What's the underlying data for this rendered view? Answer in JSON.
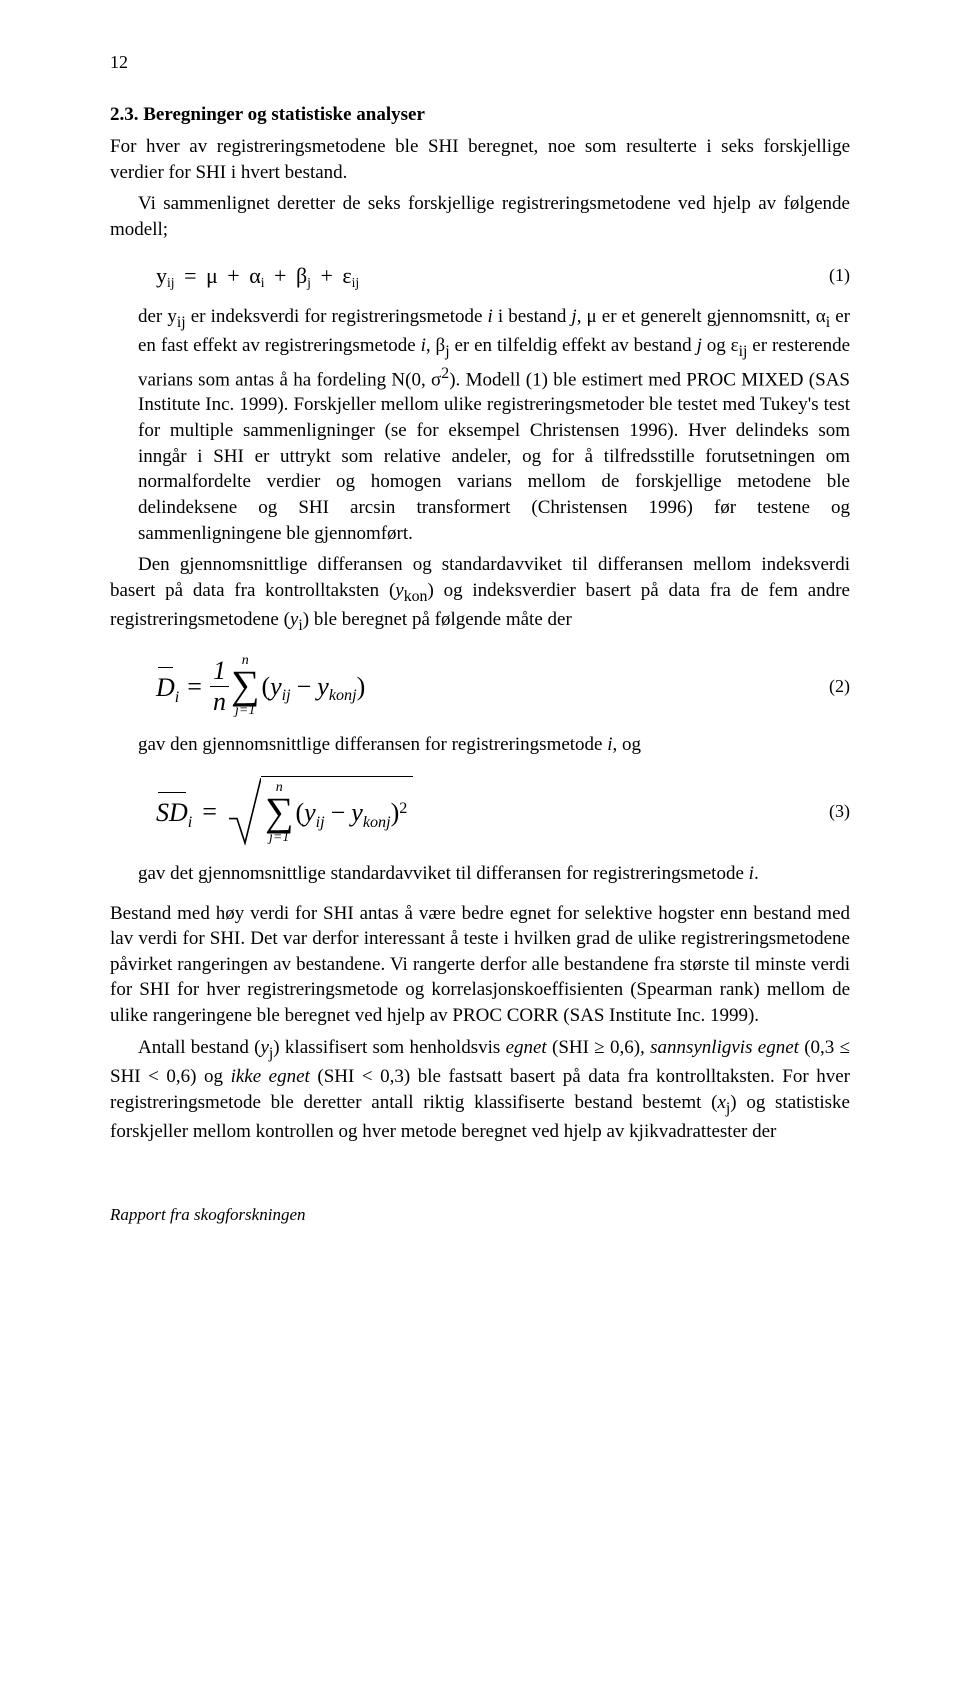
{
  "page": {
    "number": "12"
  },
  "heading": "2.3. Beregninger og statistiske analyser",
  "para1": "For hver av registreringsmetodene ble SHI beregnet, noe som resulterte i seks forskjellige verdier for SHI i hvert bestand.",
  "para2a": "Vi sammenlignet deretter de seks forskjellige registreringsmetodene ved hjelp av følgende modell;",
  "eq1": {
    "lhs": "y",
    "lhs_sub": "ij",
    "rhs_terms": [
      "μ",
      "α",
      "β",
      "ε"
    ],
    "rhs_subs": [
      "",
      "i",
      "j",
      "ij"
    ],
    "number": "(1)"
  },
  "para3_html": "der y<sub>ij</sub> er indeksverdi for registreringsmetode <i>i</i> i bestand <i>j</i>, μ er et generelt gjennomsnitt, α<sub>i</sub> er en fast effekt av registreringsmetode <i>i</i>, β<sub>j</sub> er en tilfeldig effekt av bestand <i>j</i> og ε<sub>ij</sub> er resterende varians som antas å ha fordeling N(0, σ<sup>2</sup>). Modell (1) ble estimert med PROC MIXED (SAS Institute Inc. 1999). Forskjeller mellom ulike registreringsmetoder ble testet med Tukey's test for multiple sammenligninger (se for eksempel Christensen 1996). Hver delindeks som inngår i SHI er uttrykt som relative andeler, og for å tilfredsstille forutsetningen om normalfordelte verdier og homogen varians mellom de forskjellige metodene ble delindeksene og SHI arcsin transformert (Christensen 1996) før testene og sammenligningene ble gjennomført.",
  "para4_html": "Den gjennomsnittlige differansen og standardavviket til differansen mellom indeksverdi basert på data fra kontrolltaksten (<i>y</i><sub>kon</sub>) og indeksverdier basert på data fra de fem andre registreringsmetodene (<i>y</i><sub>i</sub>) ble beregnet på følgende måte der",
  "eq2": {
    "lhs": "D",
    "lhs_sub": "i",
    "frac_num": "1",
    "frac_den": "n",
    "sum_upper": "n",
    "sum_lower": "j=1",
    "term1": "y",
    "term1_sub": "ij",
    "term2": "y",
    "term2_sub": "konj",
    "number": "(2)"
  },
  "para5_html": "gav den gjennomsnittlige differansen for registreringsmetode <i>i</i>, og",
  "eq3": {
    "lhs": "SD",
    "lhs_sub": "i",
    "sum_upper": "n",
    "sum_lower": "j=1",
    "term1": "y",
    "term1_sub": "ij",
    "term2": "y",
    "term2_sub": "konj",
    "power": "2",
    "number": "(3)"
  },
  "para6_html": "gav det gjennomsnittlige standardavviket til differansen for registreringsmetode <i>i</i>.",
  "para7_html": "Bestand med høy verdi for SHI antas å være bedre egnet for selektive hogster enn bestand med lav verdi for SHI. Det var derfor interessant å teste i hvilken grad de ulike registreringsmetodene påvirket rangeringen av bestandene. Vi rangerte derfor alle bestandene fra største til minste verdi for SHI for hver registreringsmetode og korrelasjonskoeffisienten (Spearman rank) mellom de ulike rangeringene ble beregnet ved hjelp av PROC CORR (SAS Institute Inc. 1999).",
  "para8_html": "Antall bestand (<i>y</i><sub>j</sub>) klassifisert som henholdsvis <i>egnet</i> (SHI ≥ 0,6)<i>, sannsynligvis egnet</i> (0,3 ≤ SHI &lt; 0,6) og <i>ikke egnet</i> (SHI &lt; 0,3) ble fastsatt basert på data fra kontrolltaksten. For hver registreringsmetode ble deretter antall riktig klassifiserte bestand bestemt (<i>x</i><sub>j</sub>) og statistiske forskjeller mellom kontrollen og hver metode beregnet ved hjelp av kjikvadrattester der",
  "footer": "Rapport fra skogforskningen"
}
